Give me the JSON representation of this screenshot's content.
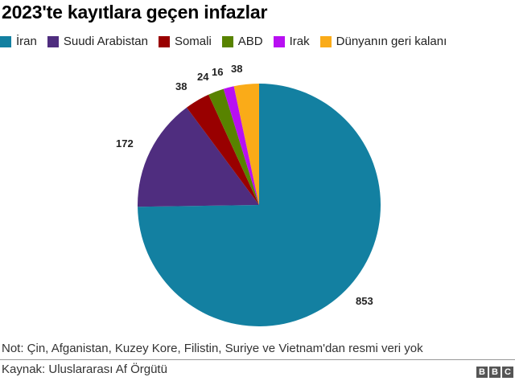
{
  "title": "2023'te kayıtlara geçen infazlar",
  "legend": [
    {
      "label": "İran",
      "color": "#1380A1"
    },
    {
      "label": "Suudi Arabistan",
      "color": "#4F2D7F"
    },
    {
      "label": "Somali",
      "color": "#990000"
    },
    {
      "label": "ABD",
      "color": "#588300"
    },
    {
      "label": "Irak",
      "color": "#B80FF2"
    },
    {
      "label": "Dünyanın geri kalanı",
      "color": "#FAAB18"
    }
  ],
  "note": "Not: Çin, Afganistan, Kuzey Kore, Filistin, Suriye ve Vietnam'dan resmi veri yok",
  "source": "Kaynak: Uluslararası Af Örgütü",
  "logo": [
    "B",
    "B",
    "C"
  ],
  "chart_data": {
    "type": "pie",
    "title": "2023'te kayıtlara geçen infazlar",
    "categories": [
      "İran",
      "Suudi Arabistan",
      "Somali",
      "ABD",
      "Irak",
      "Dünyanın geri kalanı"
    ],
    "values": [
      853,
      172,
      38,
      24,
      16,
      38
    ],
    "colors": [
      "#1380A1",
      "#4F2D7F",
      "#990000",
      "#588300",
      "#B80FF2",
      "#FAAB18"
    ],
    "data_labels": [
      "853",
      "172",
      "38",
      "24",
      "16",
      "38"
    ],
    "start_angle": "12 o'clock",
    "direction": "clockwise",
    "legend_position": "top"
  }
}
